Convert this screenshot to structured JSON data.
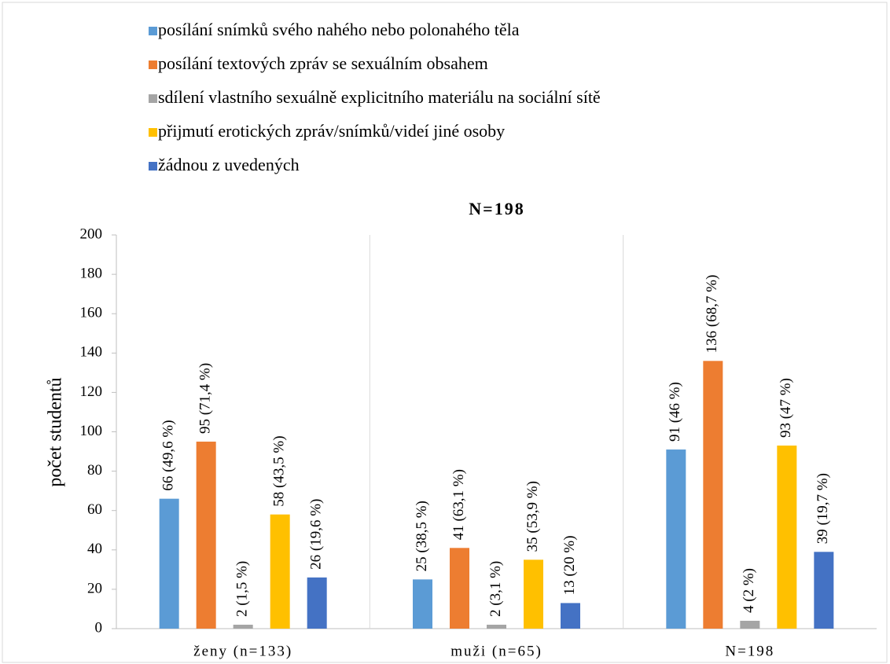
{
  "chart_data": {
    "type": "bar",
    "title": "N=198",
    "y_label": "počet studentů",
    "categories": [
      "ženy (n=133)",
      "muži (n=65)",
      "N=198"
    ],
    "series": [
      {
        "name": "posílání snímků svého nahého nebo polonahého těla",
        "color": "#5b9bd5",
        "values": [
          66,
          25,
          91
        ],
        "value_labels": [
          "66 (49,6 %)",
          "25 (38,5 %)",
          "91 (46 %)"
        ]
      },
      {
        "name": "posílání textových zpráv se sexuálním obsahem",
        "color": "#ed7d31",
        "values": [
          95,
          41,
          136
        ],
        "value_labels": [
          "95 (71,4 %)",
          "41 (63,1 %)",
          "136 (68,7 %)"
        ]
      },
      {
        "name": "sdílení vlastního sexuálně explicitního materiálu na sociální sítě",
        "color": "#a5a5a5",
        "values": [
          2,
          2,
          4
        ],
        "value_labels": [
          "2 (1,5 %)",
          "2 (3,1 %)",
          "4 (2 %)"
        ]
      },
      {
        "name": "přijmutí erotických zpráv/snímků/videí jiné osoby",
        "color": "#ffc000",
        "values": [
          58,
          35,
          93
        ],
        "value_labels": [
          "58 (43,5 %)",
          "35 (53,9 %)",
          "93 (47 %)"
        ]
      },
      {
        "name": "žádnou z uvedených",
        "color": "#4472c4",
        "values": [
          26,
          13,
          39
        ],
        "value_labels": [
          "26 (19,6 %)",
          "13 (20 %)",
          "39 (19,7 %)"
        ]
      }
    ],
    "ylim": [
      0,
      200
    ],
    "yticks": [
      0,
      20,
      40,
      60,
      80,
      100,
      120,
      140,
      160,
      180,
      200
    ],
    "legend": "top"
  }
}
